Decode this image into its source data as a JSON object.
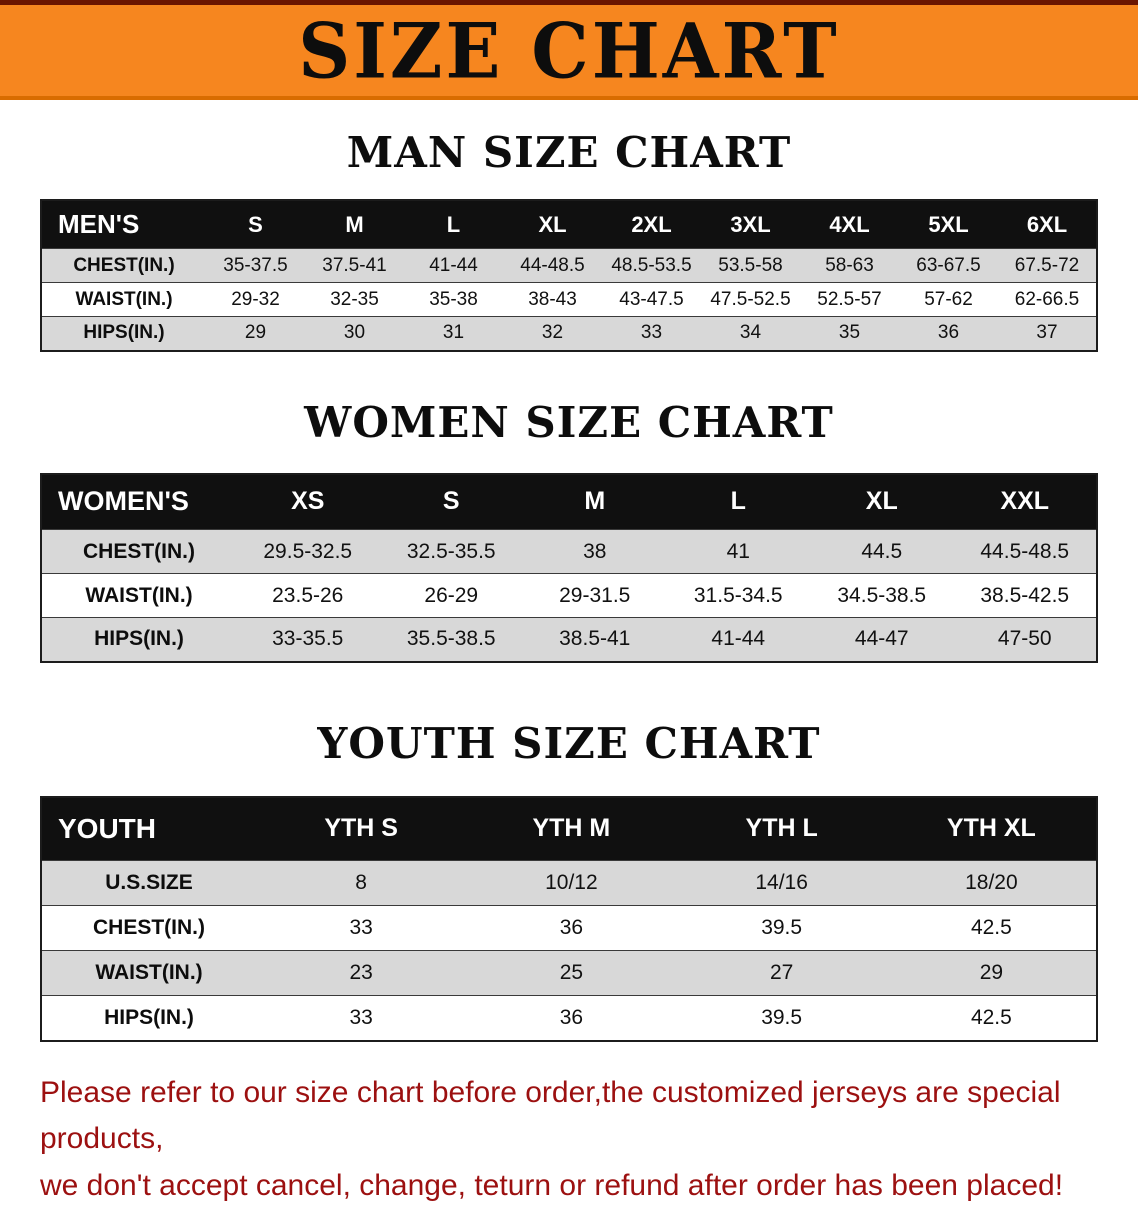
{
  "banner": {
    "title": "SIZE CHART"
  },
  "colors": {
    "banner_bg": "#f6861f",
    "banner_top_line": "#6b1500",
    "header_bg": "#101010",
    "row_alt": "#d8d8d8",
    "disclaimer_red": "#9c1010"
  },
  "sections": [
    {
      "title": "MAN SIZE CHART",
      "table": {
        "header": [
          "MEN'S",
          "S",
          "M",
          "L",
          "XL",
          "2XL",
          "3XL",
          "4XL",
          "5XL",
          "6XL"
        ],
        "rows": [
          [
            "CHEST(IN.)",
            "35-37.5",
            "37.5-41",
            "41-44",
            "44-48.5",
            "48.5-53.5",
            "53.5-58",
            "58-63",
            "63-67.5",
            "67.5-72"
          ],
          [
            "WAIST(IN.)",
            "29-32",
            "32-35",
            "35-38",
            "38-43",
            "43-47.5",
            "47.5-52.5",
            "52.5-57",
            "57-62",
            "62-66.5"
          ],
          [
            "HIPS(IN.)",
            "29",
            "30",
            "31",
            "32",
            "33",
            "34",
            "35",
            "36",
            "37"
          ]
        ]
      }
    },
    {
      "title": "WOMEN SIZE CHART",
      "table": {
        "header": [
          "WOMEN'S",
          "XS",
          "S",
          "M",
          "L",
          "XL",
          "XXL"
        ],
        "rows": [
          [
            "CHEST(IN.)",
            "29.5-32.5",
            "32.5-35.5",
            "38",
            "41",
            "44.5",
            "44.5-48.5"
          ],
          [
            "WAIST(IN.)",
            "23.5-26",
            "26-29",
            "29-31.5",
            "31.5-34.5",
            "34.5-38.5",
            "38.5-42.5"
          ],
          [
            "HIPS(IN.)",
            "33-35.5",
            "35.5-38.5",
            "38.5-41",
            "41-44",
            "44-47",
            "47-50"
          ]
        ]
      }
    },
    {
      "title": "YOUTH SIZE CHART",
      "table": {
        "header": [
          "YOUTH",
          "YTH S",
          "YTH M",
          "YTH L",
          "YTH XL"
        ],
        "rows": [
          [
            "U.S.SIZE",
            "8",
            "10/12",
            "14/16",
            "18/20"
          ],
          [
            "CHEST(IN.)",
            "33",
            "36",
            "39.5",
            "42.5"
          ],
          [
            "WAIST(IN.)",
            "23",
            "25",
            "27",
            "29"
          ],
          [
            "HIPS(IN.)",
            "33",
            "36",
            "39.5",
            "42.5"
          ]
        ]
      }
    }
  ],
  "footer": {
    "lines": [
      "Please refer to our size chart before order,the customized jerseys are special products,",
      "we don't accept cancel, change, teturn or refund after order has been placed!"
    ]
  }
}
